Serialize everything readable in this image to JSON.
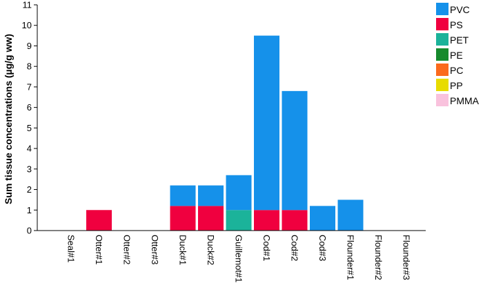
{
  "chart_data": {
    "type": "bar",
    "stacked": true,
    "categories": [
      "Seal#1",
      "Otter#1",
      "Otter#2",
      "Otter#3",
      "Duck#1",
      "Duck#2",
      "Guillemot#1",
      "Cod#1",
      "Cod#2",
      "Cod#3",
      "Flounder#1",
      "Flounder#2",
      "Flounder#3"
    ],
    "series": [
      {
        "name": "PVC",
        "color": "#1591ea",
        "values": [
          0,
          0,
          0,
          0,
          1.0,
          1.0,
          1.7,
          8.5,
          5.8,
          1.2,
          1.5,
          0,
          0
        ]
      },
      {
        "name": "PS",
        "color": "#f0003f",
        "values": [
          0,
          1.0,
          0,
          0,
          1.2,
          1.2,
          0,
          1.0,
          1.0,
          0,
          0,
          0,
          0
        ]
      },
      {
        "name": "PET",
        "color": "#1bb39a",
        "values": [
          0,
          0,
          0,
          0,
          0,
          0,
          1.0,
          0,
          0,
          0,
          0,
          0,
          0
        ]
      },
      {
        "name": "PE",
        "color": "#168a2d",
        "values": [
          0,
          0,
          0,
          0,
          0,
          0,
          0,
          0,
          0,
          0,
          0,
          0,
          0
        ]
      },
      {
        "name": "PC",
        "color": "#fb6a1c",
        "values": [
          0,
          0,
          0,
          0,
          0,
          0,
          0,
          0,
          0,
          0,
          0,
          0,
          0
        ]
      },
      {
        "name": "PP",
        "color": "#e8dc00",
        "values": [
          0,
          0,
          0,
          0,
          0,
          0,
          0,
          0,
          0,
          0,
          0,
          0,
          0
        ]
      },
      {
        "name": "PMMA",
        "color": "#f9c2dd",
        "values": [
          0,
          0,
          0,
          0,
          0,
          0,
          0,
          0,
          0,
          0,
          0,
          0,
          0
        ]
      }
    ],
    "stack_order": [
      "PET",
      "PS",
      "PVC"
    ],
    "ylabel": "Sum tissue concentrations (µg/g ww)",
    "xlabel": "",
    "ylim": [
      0,
      11
    ],
    "yticks": [
      0,
      1,
      2,
      3,
      4,
      5,
      6,
      7,
      8,
      9,
      10,
      11
    ],
    "grid": false,
    "legend_position": "top-right"
  }
}
